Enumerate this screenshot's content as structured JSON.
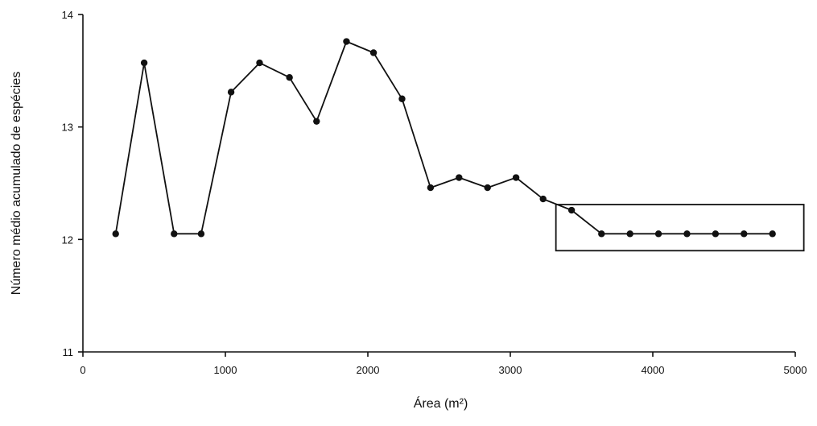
{
  "chart_data": {
    "type": "line",
    "title": "",
    "xlabel": "Área (m²)",
    "ylabel": "Número médio acumulado de espécies",
    "xlim": [
      0,
      5000
    ],
    "ylim": [
      11,
      14
    ],
    "xticks": [
      0,
      1000,
      2000,
      3000,
      4000,
      5000
    ],
    "yticks": [
      11,
      12,
      13,
      14
    ],
    "xtick_labels": [
      "0",
      "1000",
      "2000",
      "3000",
      "4000",
      "5000"
    ],
    "ytick_labels": [
      "11",
      "12",
      "13",
      "14"
    ],
    "grid": false,
    "legend": "none",
    "series": [
      {
        "x": [
          230,
          430,
          640,
          830,
          1040,
          1240,
          1450,
          1640,
          1850,
          2040,
          2240,
          2440,
          2640,
          2840,
          3040,
          3230,
          3430,
          3640,
          3840,
          4040,
          4240,
          4440,
          4640,
          4840
        ],
        "values": [
          12.05,
          13.57,
          12.05,
          12.05,
          13.31,
          13.57,
          13.44,
          13.05,
          13.76,
          13.66,
          13.25,
          12.46,
          12.55,
          12.46,
          12.55,
          12.36,
          12.26,
          12.05,
          12.05,
          12.05,
          12.05,
          12.05,
          12.05,
          12.05
        ]
      }
    ],
    "annotations": [
      {
        "type": "rectangle",
        "x": [
          3320,
          5060
        ],
        "y": [
          11.9,
          12.31
        ]
      }
    ]
  }
}
